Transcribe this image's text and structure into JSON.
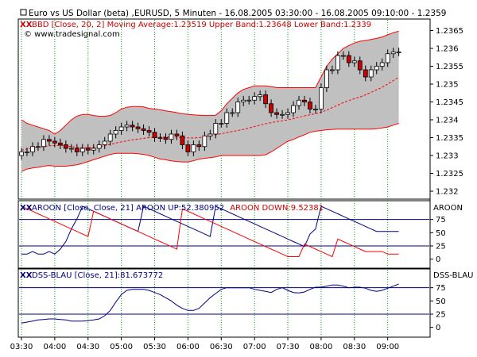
{
  "header": {
    "title": "Euro vs US Dollar (beta) ,EURUSD, 5 Minuten - 16.08.2005 03:30:00 - 16.08.2005 09:10:00 - 1.2359",
    "bb_legend": "BBD [Close, 20, 2] Moving Average:1.23519 Upper Band:1.23648 Lower Band:1.2339",
    "watermark": "© www.tradesignal.com"
  },
  "aroon": {
    "legend": "AROON [Close, Close, 21] AROON UP:52.380952",
    "legend_down": "AROON DOWN:9.52381",
    "side_label": "AROON",
    "ticks": [
      "75",
      "50",
      "25",
      "0"
    ]
  },
  "dss": {
    "legend": "DSS-BLAU [Close, 21]:81.673772",
    "side_label": "DSS-BLAU",
    "ticks": [
      "75",
      "50",
      "25",
      "0"
    ]
  },
  "price_ticks": [
    "1.2365",
    "1.236",
    "1.2355",
    "1.235",
    "1.2345",
    "1.234",
    "1.2335",
    "1.233",
    "1.2325",
    "1.232"
  ],
  "time_ticks": [
    "03:30",
    "04:00",
    "04:30",
    "05:00",
    "05:30",
    "06:00",
    "06:30",
    "07:00",
    "07:30",
    "08:00",
    "08:30",
    "09:00"
  ],
  "colors": {
    "up_candle": "#ffffff",
    "down_candle": "#cc0000",
    "band_fill": "#c0c0c0",
    "band_line": "#ff0000",
    "aroon_up": "#000080",
    "aroon_down": "#ff0000",
    "dss_line": "#000080",
    "grid": "#00a000",
    "title_red": "#cc0000"
  },
  "chart_data": [
    {
      "type": "candlestick",
      "title": "Euro vs US Dollar (beta) ,EURUSD, 5 Minuten - 16.08.2005 03:30:00 - 16.08.2005 09:10:00 - 1.2359",
      "x": [
        "03:30",
        "03:35",
        "03:40",
        "03:45",
        "03:50",
        "03:55",
        "04:00",
        "04:05",
        "04:10",
        "04:15",
        "04:20",
        "04:25",
        "04:30",
        "04:35",
        "04:40",
        "04:45",
        "04:50",
        "04:55",
        "05:00",
        "05:05",
        "05:10",
        "05:15",
        "05:20",
        "05:25",
        "05:30",
        "05:35",
        "05:40",
        "05:45",
        "05:50",
        "05:55",
        "06:00",
        "06:05",
        "06:10",
        "06:15",
        "06:20",
        "06:25",
        "06:30",
        "06:35",
        "06:40",
        "06:45",
        "06:50",
        "06:55",
        "07:00",
        "07:05",
        "07:10",
        "07:15",
        "07:20",
        "07:25",
        "07:30",
        "07:35",
        "07:40",
        "07:45",
        "07:50",
        "07:55",
        "08:00",
        "08:05",
        "08:10",
        "08:15",
        "08:20",
        "08:25",
        "08:30",
        "08:35",
        "08:40",
        "08:45",
        "08:50",
        "08:55",
        "09:00",
        "09:05",
        "09:10"
      ],
      "open": [
        1.233,
        1.2331,
        1.2331,
        1.23325,
        1.23325,
        1.23345,
        1.2334,
        1.23335,
        1.2333,
        1.2332,
        1.2332,
        1.2331,
        1.2332,
        1.23315,
        1.2332,
        1.2333,
        1.2334,
        1.2336,
        1.2337,
        1.2338,
        1.23385,
        1.2338,
        1.23375,
        1.2337,
        1.23365,
        1.2335,
        1.2335,
        1.23345,
        1.2336,
        1.23355,
        1.2333,
        1.2331,
        1.2333,
        1.23325,
        1.23355,
        1.2336,
        1.2339,
        1.2339,
        1.2342,
        1.2342,
        1.2345,
        1.23455,
        1.23455,
        1.23465,
        1.2347,
        1.23445,
        1.2342,
        1.23415,
        1.23415,
        1.2342,
        1.2344,
        1.23455,
        1.2345,
        1.2343,
        1.2343,
        1.2349,
        1.2354,
        1.2354,
        1.2358,
        1.2358,
        1.2356,
        1.23565,
        1.2354,
        1.2352,
        1.2354,
        1.2355,
        1.2356,
        1.23585,
        1.2359
      ],
      "close": [
        1.2331,
        1.2331,
        1.23325,
        1.23325,
        1.23345,
        1.2334,
        1.23335,
        1.2333,
        1.2332,
        1.2332,
        1.2331,
        1.2332,
        1.23315,
        1.2332,
        1.2333,
        1.2334,
        1.2336,
        1.2337,
        1.2338,
        1.23385,
        1.2338,
        1.23375,
        1.2337,
        1.23365,
        1.2335,
        1.2335,
        1.23345,
        1.2336,
        1.23355,
        1.2333,
        1.2331,
        1.2333,
        1.23325,
        1.23355,
        1.2336,
        1.2339,
        1.2339,
        1.2342,
        1.2342,
        1.2345,
        1.23455,
        1.23455,
        1.23465,
        1.2347,
        1.23445,
        1.2342,
        1.23415,
        1.23415,
        1.2342,
        1.2344,
        1.23455,
        1.2345,
        1.2343,
        1.2343,
        1.2349,
        1.2354,
        1.2354,
        1.2358,
        1.2358,
        1.2356,
        1.23565,
        1.2354,
        1.2352,
        1.2354,
        1.2355,
        1.2356,
        1.23585,
        1.2359,
        1.2359
      ],
      "moving_average": [
        1.23315,
        1.23318,
        1.2332,
        1.23323,
        1.23325,
        1.23327,
        1.23328,
        1.23328,
        1.23327,
        1.23325,
        1.23323,
        1.23322,
        1.23322,
        1.23323,
        1.23325,
        1.23328,
        1.23331,
        1.23335,
        1.23338,
        1.23341,
        1.23344,
        1.23346,
        1.23348,
        1.2335,
        1.23351,
        1.23352,
        1.23352,
        1.23352,
        1.23351,
        1.2335,
        1.23349,
        1.23349,
        1.2335,
        1.23352,
        1.23355,
        1.23358,
        1.23361,
        1.23364,
        1.23367,
        1.2337,
        1.23373,
        1.23377,
        1.23381,
        1.23385,
        1.23389,
        1.23392,
        1.23395,
        1.23397,
        1.234,
        1.23403,
        1.23407,
        1.23411,
        1.23414,
        1.23417,
        1.23421,
        1.23427,
        1.23434,
        1.23441,
        1.23448,
        1.23454,
        1.23459,
        1.23464,
        1.2347,
        1.23477,
        1.23484,
        1.23491,
        1.235,
        1.2351,
        1.23519
      ],
      "upper_band": [
        1.234,
        1.2339,
        1.23385,
        1.2338,
        1.23375,
        1.2337,
        1.2336,
        1.2337,
        1.23385,
        1.234,
        1.2341,
        1.23415,
        1.23415,
        1.23412,
        1.2341,
        1.2341,
        1.23412,
        1.2342,
        1.2343,
        1.23435,
        1.23437,
        1.23437,
        1.23436,
        1.23432,
        1.2343,
        1.23428,
        1.23425,
        1.23423,
        1.2342,
        1.23417,
        1.23415,
        1.23414,
        1.23413,
        1.23412,
        1.23412,
        1.23413,
        1.23425,
        1.23445,
        1.2346,
        1.23475,
        1.23485,
        1.2349,
        1.23495,
        1.23495,
        1.23495,
        1.23493,
        1.2349,
        1.2349,
        1.2349,
        1.2349,
        1.2349,
        1.2349,
        1.2349,
        1.2349,
        1.2352,
        1.2355,
        1.2357,
        1.23585,
        1.236,
        1.23608,
        1.23615,
        1.2362,
        1.23622,
        1.23625,
        1.23628,
        1.23632,
        1.23638,
        1.23644,
        1.23648
      ],
      "lower_band": [
        1.23255,
        1.23262,
        1.23265,
        1.23267,
        1.2327,
        1.23272,
        1.2327,
        1.2327,
        1.2327,
        1.23272,
        1.23274,
        1.23278,
        1.23283,
        1.23288,
        1.23293,
        1.23298,
        1.23303,
        1.23306,
        1.23306,
        1.23306,
        1.23306,
        1.23305,
        1.23303,
        1.233,
        1.23295,
        1.2329,
        1.23288,
        1.23285,
        1.23283,
        1.23282,
        1.23282,
        1.23285,
        1.2329,
        1.23292,
        1.23294,
        1.23296,
        1.233,
        1.233,
        1.233,
        1.233,
        1.233,
        1.233,
        1.233,
        1.233,
        1.23302,
        1.2331,
        1.2332,
        1.2333,
        1.2334,
        1.23345,
        1.23352,
        1.23358,
        1.23365,
        1.23368,
        1.2337,
        1.23372,
        1.23373,
        1.23374,
        1.23374,
        1.23374,
        1.23374,
        1.23374,
        1.23374,
        1.23374,
        1.23375,
        1.23377,
        1.2338,
        1.23385,
        1.2339
      ],
      "ylim": [
        1.2318,
        1.2368
      ]
    },
    {
      "type": "line",
      "title": "AROON [Close, Close, 21]",
      "ylim": [
        -8,
        100
      ],
      "series": [
        {
          "name": "AROON UP",
          "values": [
            9.5,
            9.5,
            14.3,
            9.5,
            9.5,
            14.3,
            9.5,
            19,
            33.3,
            57.1,
            76.2,
            100,
            95.2,
            90.5,
            85.7,
            81,
            76.2,
            71.4,
            66.7,
            61.9,
            57.1,
            52.4,
            100,
            95.2,
            90.5,
            85.7,
            81,
            76.2,
            71.4,
            66.7,
            61.9,
            57.1,
            52.4,
            47.6,
            42.9,
            100,
            95.2,
            90.5,
            85.7,
            81,
            76.2,
            71.4,
            66.7,
            61.9,
            57.1,
            52.4,
            47.6,
            42.9,
            38.1,
            33.3,
            28.6,
            23.8,
            47.6,
            57.1,
            100,
            95.2,
            90.5,
            85.7,
            81,
            76.2,
            71.4,
            66.7,
            61.9,
            57.1,
            52.4,
            52.4,
            52.4,
            52.4,
            52.4
          ]
        },
        {
          "name": "AROON DOWN",
          "values": [
            100,
            95.2,
            90.5,
            85.7,
            81,
            76.2,
            71.4,
            66.7,
            61.9,
            57.1,
            52.4,
            47.6,
            42.9,
            90.5,
            85.7,
            81,
            76.2,
            71.4,
            66.7,
            61.9,
            57.1,
            52.4,
            47.6,
            42.9,
            38.1,
            33.3,
            28.6,
            23.8,
            19,
            95.2,
            90.5,
            85.7,
            81,
            76.2,
            71.4,
            66.7,
            61.9,
            57.1,
            52.4,
            47.6,
            42.9,
            38.1,
            33.3,
            28.6,
            23.8,
            19,
            14.3,
            9.5,
            4.8,
            4.8,
            4.8,
            28.6,
            23.8,
            19,
            14.3,
            9.5,
            4.8,
            38.1,
            33.3,
            28.6,
            23.8,
            19,
            14.3,
            14.3,
            14.3,
            14.3,
            9.5,
            9.5,
            9.5
          ]
        }
      ]
    },
    {
      "type": "line",
      "title": "DSS-BLAU [Close, 21]",
      "ylim": [
        -8,
        100
      ],
      "series": [
        {
          "name": "DSS-BLAU",
          "values": [
            8,
            10,
            12,
            14,
            15,
            16,
            16,
            15,
            14,
            12,
            12,
            12,
            13,
            14,
            16,
            22,
            32,
            48,
            62,
            70,
            72,
            72,
            72,
            70,
            66,
            62,
            56,
            50,
            42,
            36,
            32,
            32,
            36,
            46,
            56,
            64,
            72,
            75,
            75,
            75,
            75,
            75,
            72,
            70,
            68,
            66,
            72,
            75,
            70,
            66,
            65,
            67,
            72,
            76,
            76,
            78,
            80,
            80,
            78,
            75,
            76,
            76,
            74,
            70,
            68,
            70,
            74,
            78,
            82
          ]
        }
      ]
    }
  ]
}
